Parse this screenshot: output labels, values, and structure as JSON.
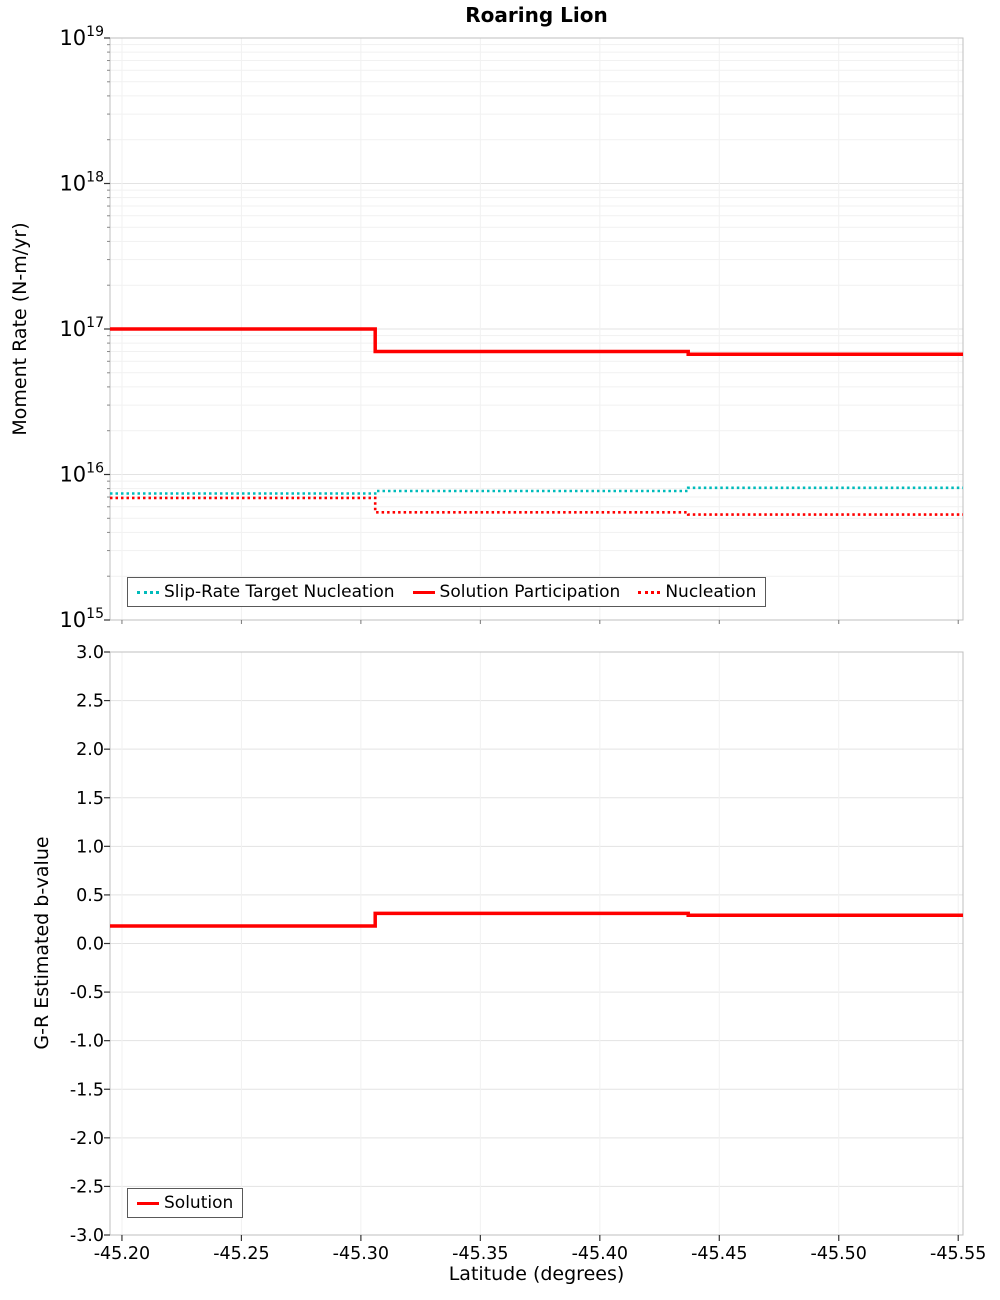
{
  "title": "Roaring Lion",
  "xlabel": "Latitude (degrees)",
  "colors": {
    "accent_red": "#ff0000",
    "accent_teal": "#00bbbb",
    "grid_minor": "#f1f1f1",
    "grid_major": "#e3e3e3",
    "axis_border": "#bfbfbf",
    "tick": "#333333"
  },
  "chart_data": [
    {
      "type": "line",
      "subplot": "top",
      "title": "Roaring Lion",
      "ylabel": "Moment Rate (N-m/yr)",
      "yscale": "log",
      "ylim": [
        1000000000000000.0,
        1e+19
      ],
      "ytick_exponents": [
        15,
        16,
        17,
        18,
        19
      ],
      "xlim": [
        -45.195,
        -45.552
      ],
      "x_reversed": true,
      "xticks": [
        -45.2,
        -45.25,
        -45.3,
        -45.35,
        -45.4,
        -45.45,
        -45.5,
        -45.55
      ],
      "xtick_labels": [
        "-45.20",
        "-45.25",
        "-45.30",
        "-45.35",
        "-45.40",
        "-45.45",
        "-45.50",
        "-45.55"
      ],
      "grid": true,
      "legend_position": "bottom-left-inside",
      "series": [
        {
          "name": "Slip-Rate Target Nucleation",
          "color": "#00bbbb",
          "style": "dotted",
          "step_x": [
            -45.195,
            -45.306,
            -45.437,
            -45.552
          ],
          "step_y": [
            7400000000000000.0,
            7700000000000000.0,
            8100000000000000.0
          ]
        },
        {
          "name": "Solution Participation",
          "color": "#ff0000",
          "style": "solid",
          "step_x": [
            -45.195,
            -45.306,
            -45.437,
            -45.552
          ],
          "step_y": [
            1e+17,
            7e+16,
            6.7e+16
          ]
        },
        {
          "name": "Nucleation",
          "color": "#ff0000",
          "style": "dotted",
          "step_x": [
            -45.195,
            -45.306,
            -45.437,
            -45.552
          ],
          "step_y": [
            6900000000000000.0,
            5500000000000000.0,
            5300000000000000.0
          ]
        }
      ]
    },
    {
      "type": "line",
      "subplot": "bottom",
      "ylabel": "G-R Estimated b-value",
      "yscale": "linear",
      "ylim": [
        -3.0,
        3.0
      ],
      "ytick_step": 0.5,
      "ytick_labels": [
        "3.0",
        "2.5",
        "2.0",
        "1.5",
        "1.0",
        "0.5",
        "0.0",
        "-0.5",
        "-1.0",
        "-1.5",
        "-2.0",
        "-2.5",
        "-3.0"
      ],
      "xlim": [
        -45.195,
        -45.552
      ],
      "x_reversed": true,
      "xticks": [
        -45.2,
        -45.25,
        -45.3,
        -45.35,
        -45.4,
        -45.45,
        -45.5,
        -45.55
      ],
      "xtick_labels": [
        "-45.20",
        "-45.25",
        "-45.30",
        "-45.35",
        "-45.40",
        "-45.45",
        "-45.50",
        "-45.55"
      ],
      "grid": true,
      "legend_position": "bottom-left-inside",
      "series": [
        {
          "name": "Solution",
          "color": "#ff0000",
          "style": "solid",
          "step_x": [
            -45.195,
            -45.306,
            -45.437,
            -45.552
          ],
          "step_y": [
            0.18,
            0.31,
            0.29
          ]
        }
      ]
    }
  ]
}
